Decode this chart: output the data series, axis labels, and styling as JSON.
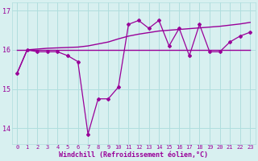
{
  "x": [
    0,
    1,
    2,
    3,
    4,
    5,
    6,
    7,
    8,
    9,
    10,
    11,
    12,
    13,
    14,
    15,
    16,
    17,
    18,
    19,
    20,
    21,
    22,
    23
  ],
  "line_volatile": [
    15.4,
    16.0,
    15.95,
    15.95,
    15.95,
    15.85,
    15.7,
    13.85,
    14.75,
    14.75,
    15.05,
    16.65,
    16.75,
    16.55,
    16.75,
    16.1,
    16.55,
    15.85,
    16.65,
    15.95,
    15.95,
    16.2,
    16.35,
    16.45
  ],
  "line_smooth": [
    15.4,
    16.0,
    16.02,
    16.04,
    16.05,
    16.06,
    16.07,
    16.1,
    16.15,
    16.2,
    16.28,
    16.35,
    16.4,
    16.44,
    16.48,
    16.5,
    16.52,
    16.54,
    16.56,
    16.58,
    16.6,
    16.63,
    16.66,
    16.7
  ],
  "line_flat": [
    16.0,
    16.0,
    16.0,
    16.0,
    16.0,
    16.0,
    16.0,
    16.0,
    16.0,
    16.0,
    16.0,
    16.0,
    16.0,
    16.0,
    16.0,
    16.0,
    16.0,
    16.0,
    16.0,
    16.0,
    16.0,
    16.0,
    16.0,
    16.0
  ],
  "line_color": "#990099",
  "bg_color": "#d8f0f0",
  "grid_color": "#b0dede",
  "xlabel": "Windchill (Refroidissement éolien,°C)",
  "ylim": [
    13.6,
    17.2
  ],
  "yticks": [
    14,
    15,
    16,
    17
  ],
  "xticks": [
    0,
    1,
    2,
    3,
    4,
    5,
    6,
    7,
    8,
    9,
    10,
    11,
    12,
    13,
    14,
    15,
    16,
    17,
    18,
    19,
    20,
    21,
    22,
    23
  ]
}
